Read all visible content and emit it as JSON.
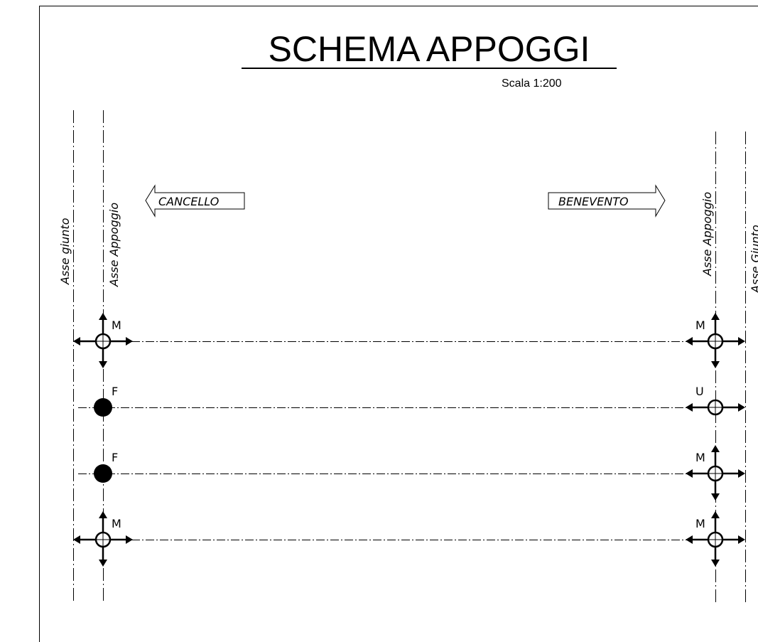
{
  "title": "SCHEMA APPOGGI",
  "scale": "Scala 1:200",
  "direction_left": "CANCELLO",
  "direction_right": "BENEVENTO",
  "axes": {
    "left_joint": "Asse giunto",
    "left_support": "Asse Appoggio",
    "right_support": "Asse Appoggio",
    "right_joint": "Asse Giunto"
  },
  "supports": [
    {
      "row": 1,
      "left": {
        "type": "M",
        "label": "M"
      },
      "right": {
        "type": "M",
        "label": "M"
      }
    },
    {
      "row": 2,
      "left": {
        "type": "F",
        "label": "F"
      },
      "right": {
        "type": "U",
        "label": "U"
      }
    },
    {
      "row": 3,
      "left": {
        "type": "F",
        "label": "F"
      },
      "right": {
        "type": "M",
        "label": "M"
      }
    },
    {
      "row": 4,
      "left": {
        "type": "M",
        "label": "M"
      },
      "right": {
        "type": "M",
        "label": "M"
      }
    }
  ]
}
